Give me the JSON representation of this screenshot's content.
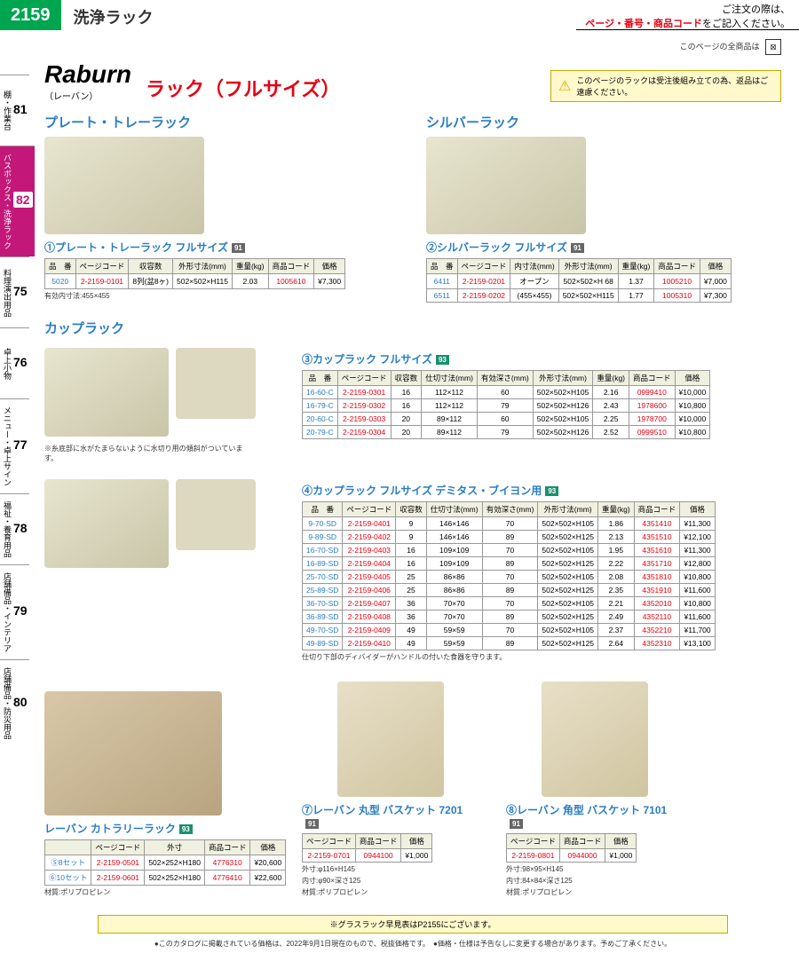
{
  "header": {
    "pagenum": "2159",
    "title": "洗浄ラック",
    "order_note_pre": "ご注文の際は、",
    "order_note_emph": "ページ・番号・商品コード",
    "order_note_post": "をご記入ください。"
  },
  "top_note": "このページの全商品は",
  "sidebar": [
    {
      "num": "81",
      "label": "棚・作業台"
    },
    {
      "num": "82",
      "label": "バスボックス・洗浄ラック"
    },
    {
      "num": "75",
      "label": "料理演出用品"
    },
    {
      "num": "76",
      "label": "卓上小物"
    },
    {
      "num": "77",
      "label": "メニュー・卓上サイン"
    },
    {
      "num": "78",
      "label": "福祉・養育用品"
    },
    {
      "num": "79",
      "label": "店舗備品・インテリア"
    },
    {
      "num": "80",
      "label": "店舗備品・防災用品"
    }
  ],
  "brand": {
    "name": "Raburn",
    "sub": "（レーバン）",
    "section": "ラック（フルサイズ）"
  },
  "warn": "このページのラックは受注後組み立ての為、返品はご遠慮ください。",
  "sections": {
    "plate": {
      "header": "プレート・トレーラック",
      "title": "①プレート・トレーラック フルサイズ",
      "effective": "有効内寸法:455×455",
      "cols": [
        "品　番",
        "ページコード",
        "収容数",
        "外形寸法(mm)",
        "重量(kg)",
        "商品コード",
        "価格"
      ],
      "rows": [
        [
          "5020",
          "2-2159-0101",
          "8列(盆8ヶ)",
          "502×502×H115",
          "2.03",
          "1005610",
          "¥7,300"
        ]
      ]
    },
    "silver": {
      "header": "シルバーラック",
      "title": "②シルバーラック フルサイズ",
      "cols": [
        "品　番",
        "ページコード",
        "内寸法(mm)",
        "外形寸法(mm)",
        "重量(kg)",
        "商品コード",
        "価格"
      ],
      "rows": [
        [
          "6411",
          "2-2159-0201",
          "オープン",
          "502×502×H 68",
          "1.37",
          "1005210",
          "¥7,000"
        ],
        [
          "6511",
          "2-2159-0202",
          "(455×455)",
          "502×502×H115",
          "1.77",
          "1005310",
          "¥7,300"
        ]
      ]
    },
    "cup": {
      "header": "カップラック",
      "title": "③カップラック フルサイズ",
      "img_note": "※糸底部に水がたまらないように水切り用の傾斜がついています。",
      "cols": [
        "品　番",
        "ページコード",
        "収容数",
        "仕切寸法(mm)",
        "有効深さ(mm)",
        "外形寸法(mm)",
        "重量(kg)",
        "商品コード",
        "価格"
      ],
      "rows": [
        [
          "16-60-C",
          "2-2159-0301",
          "16",
          "112×112",
          "60",
          "502×502×H105",
          "2.16",
          "0999410",
          "¥10,000"
        ],
        [
          "16-79-C",
          "2-2159-0302",
          "16",
          "112×112",
          "79",
          "502×502×H126",
          "2.43",
          "1978600",
          "¥10,800"
        ],
        [
          "20-60-C",
          "2-2159-0303",
          "20",
          "89×112",
          "60",
          "502×502×H105",
          "2.25",
          "1978700",
          "¥10,000"
        ],
        [
          "20-79-C",
          "2-2159-0304",
          "20",
          "89×112",
          "79",
          "502×502×H126",
          "2.52",
          "0999510",
          "¥10,800"
        ]
      ]
    },
    "demitasse": {
      "title": "④カップラック フルサイズ デミタス・ブイヨン用",
      "note": "仕切り下部のディバイダーがハンドルの付いた食器を守ります。",
      "cols": [
        "品　番",
        "ページコード",
        "収容数",
        "仕切寸法(mm)",
        "有効深さ(mm)",
        "外形寸法(mm)",
        "重量(kg)",
        "商品コード",
        "価格"
      ],
      "rows": [
        [
          "9-70-SD",
          "2-2159-0401",
          "9",
          "146×146",
          "70",
          "502×502×H105",
          "1.86",
          "4351410",
          "¥11,300"
        ],
        [
          "9-89-SD",
          "2-2159-0402",
          "9",
          "146×146",
          "89",
          "502×502×H125",
          "2.13",
          "4351510",
          "¥12,100"
        ],
        [
          "16-70-SD",
          "2-2159-0403",
          "16",
          "109×109",
          "70",
          "502×502×H105",
          "1.95",
          "4351610",
          "¥11,300"
        ],
        [
          "16-89-SD",
          "2-2159-0404",
          "16",
          "109×109",
          "89",
          "502×502×H125",
          "2.22",
          "4351710",
          "¥12,800"
        ],
        [
          "25-70-SD",
          "2-2159-0405",
          "25",
          "86×86",
          "70",
          "502×502×H105",
          "2.08",
          "4351810",
          "¥10,800"
        ],
        [
          "25-89-SD",
          "2-2159-0406",
          "25",
          "86×86",
          "89",
          "502×502×H125",
          "2.35",
          "4351910",
          "¥11,600"
        ],
        [
          "36-70-SD",
          "2-2159-0407",
          "36",
          "70×70",
          "70",
          "502×502×H105",
          "2.21",
          "4352010",
          "¥10,800"
        ],
        [
          "36-89-SD",
          "2-2159-0408",
          "36",
          "70×70",
          "89",
          "502×502×H125",
          "2.49",
          "4352110",
          "¥11,600"
        ],
        [
          "49-70-SD",
          "2-2159-0409",
          "49",
          "59×59",
          "70",
          "502×502×H105",
          "2.37",
          "4352210",
          "¥11,700"
        ],
        [
          "49-89-SD",
          "2-2159-0410",
          "49",
          "59×59",
          "89",
          "502×502×H125",
          "2.64",
          "4352310",
          "¥13,100"
        ]
      ]
    },
    "cutlery": {
      "title": "レーバン カトラリーラック",
      "cols": [
        "",
        "ページコード",
        "外寸",
        "商品コード",
        "価格"
      ],
      "rows": [
        [
          "⑤8セット",
          "2-2159-0501",
          "502×252×H180",
          "4776310",
          "¥20,600"
        ],
        [
          "⑥10セット",
          "2-2159-0601",
          "502×252×H180",
          "4776410",
          "¥22,600"
        ]
      ],
      "material": "材質:ポリプロピレン"
    },
    "round": {
      "title": "⑦レーバン 丸型 バスケット 7201",
      "cols": [
        "ページコード",
        "商品コード",
        "価格"
      ],
      "rows": [
        [
          "2-2159-0701",
          "0944100",
          "¥1,000"
        ]
      ],
      "specs": [
        "外寸:φ116×H145",
        "内寸:φ90×深さ125",
        "材質:ポリプロピレン"
      ]
    },
    "square": {
      "title": "⑧レーバン 角型 バスケット 7101",
      "cols": [
        "ページコード",
        "商品コード",
        "価格"
      ],
      "rows": [
        [
          "2-2159-0801",
          "0944000",
          "¥1,000"
        ]
      ],
      "specs": [
        "外寸:98×95×H145",
        "内寸:84×84×深さ125",
        "材質:ポリプロピレン"
      ]
    }
  },
  "footer": {
    "note": "※グラスラック早見表はP2155にございます。",
    "disclaimer": "●このカタログに掲載されている価格は、2022年9月1日現在のもので、税抜価格です。　●価格・仕様は予告なしに変更する場合があります。予めご了承ください。"
  }
}
